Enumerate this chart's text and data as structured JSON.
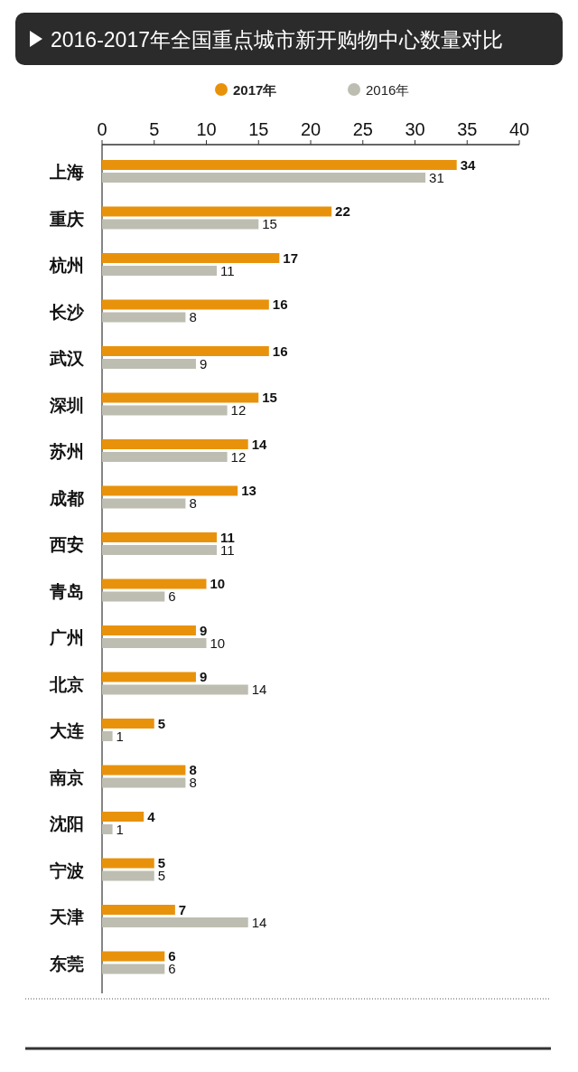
{
  "chart_data": {
    "type": "bar",
    "orientation": "horizontal",
    "title": "2016-2017年全国重点城市新开购物中心数量对比",
    "categories": [
      "上海",
      "重庆",
      "杭州",
      "长沙",
      "武汉",
      "深圳",
      "苏州",
      "成都",
      "西安",
      "青岛",
      "广州",
      "北京",
      "大连",
      "南京",
      "沈阳",
      "宁波",
      "天津",
      "东莞"
    ],
    "series": [
      {
        "name": "2017年",
        "color": "#e8920c",
        "values": [
          34,
          22,
          17,
          16,
          16,
          15,
          14,
          13,
          11,
          10,
          9,
          9,
          5,
          8,
          4,
          5,
          7,
          6
        ]
      },
      {
        "name": "2016年",
        "color": "#bdbdb1",
        "values": [
          31,
          15,
          11,
          8,
          9,
          12,
          12,
          8,
          11,
          6,
          10,
          14,
          1,
          8,
          1,
          5,
          14,
          6
        ]
      }
    ],
    "xlim": [
      0,
      40
    ],
    "xticks": [
      0,
      5,
      10,
      15,
      20,
      25,
      30,
      35,
      40
    ],
    "data_labels": true,
    "legend": "top",
    "grid": false
  }
}
